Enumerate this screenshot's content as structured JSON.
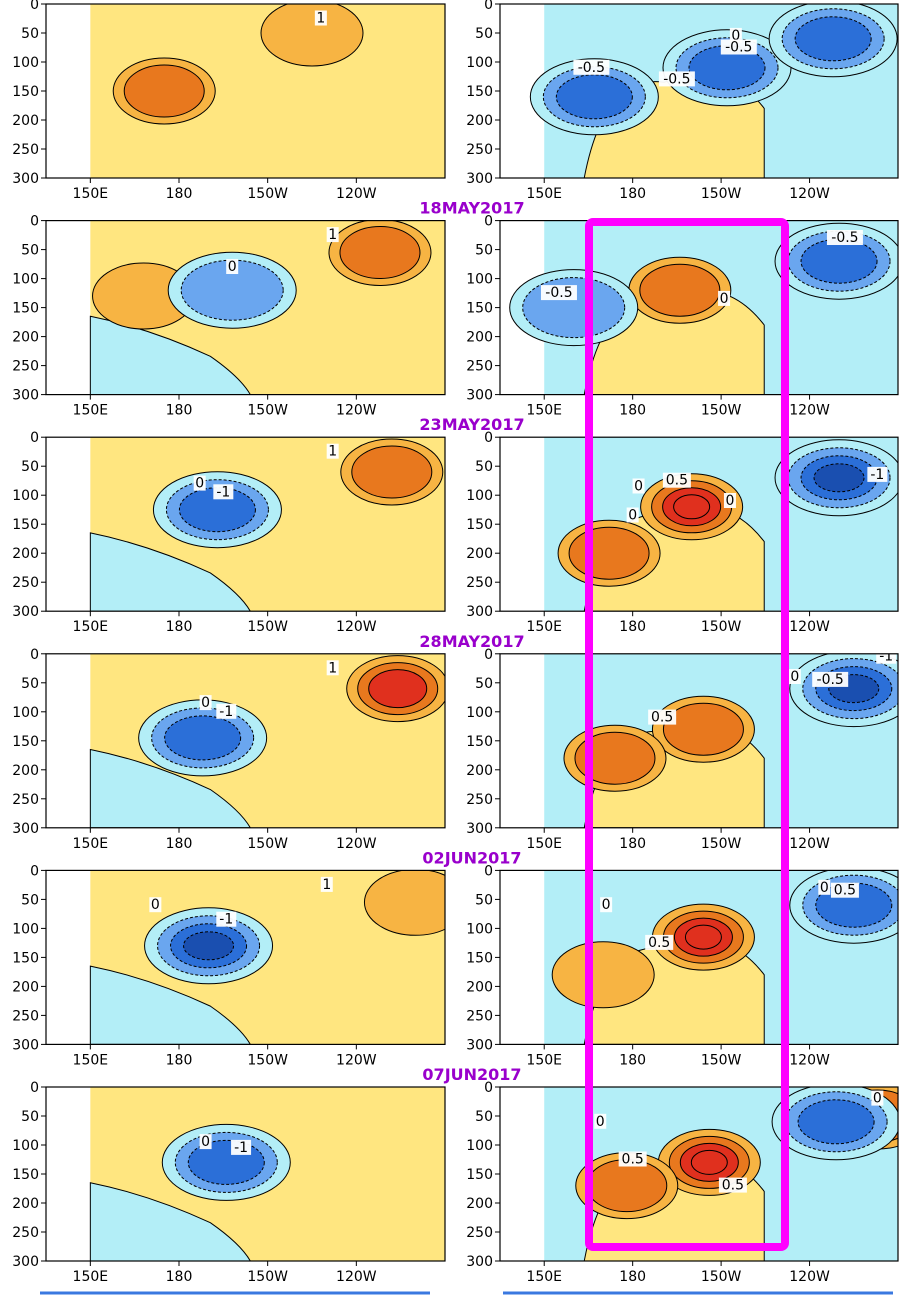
{
  "chart_data": {
    "type": "contour",
    "description": "Paired longitude-depth sections; left = anomaly, right = change",
    "y_axis": {
      "ticks": [
        0,
        50,
        100,
        150,
        200,
        250,
        300
      ],
      "ylim": [
        300,
        0
      ]
    },
    "x_axis": {
      "ticks": [
        {
          "lon": 150,
          "label": "150E"
        },
        {
          "lon": 180,
          "label": "180"
        },
        {
          "lon": 210,
          "label": "150W"
        },
        {
          "lon": 240,
          "label": "120W"
        }
      ],
      "xlim": [
        135,
        270
      ],
      "data_start_lon": 150
    },
    "colors": {
      "light_yellow": "#ffe680",
      "orange": "#f7b443",
      "deep_orange": "#e8781e",
      "red": "#e0301e",
      "light_blue": "#b3eef7",
      "blue": "#6aa6ef",
      "dark_blue": "#2b6fd8",
      "date_color": "#9900cc",
      "highlight": "#ff00ff"
    },
    "date_labels": [
      "18MAY2017",
      "23MAY2017",
      "28MAY2017",
      "02JUN2017",
      "07JUN2017"
    ],
    "rows": [
      {
        "left": {
          "warm": [
            {
              "lon": 175,
              "depth": 150,
              "level": 2
            },
            {
              "lon": 225,
              "depth": 50,
              "level": 1
            }
          ],
          "cold": [],
          "labels": [
            {
              "text": "1",
              "lon": 228,
              "depth": 25
            }
          ]
        },
        "right": {
          "warm": [],
          "cold": [
            {
              "lon": 167,
              "depth": 160,
              "level": 2
            },
            {
              "lon": 212,
              "depth": 110,
              "level": 2
            },
            {
              "lon": 248,
              "depth": 60,
              "level": 2
            }
          ],
          "labels": [
            {
              "text": "-0.5",
              "lon": 166,
              "depth": 110
            },
            {
              "text": "-0.5",
              "lon": 195,
              "depth": 130
            },
            {
              "text": "0",
              "lon": 215,
              "depth": 55
            },
            {
              "text": "-0.5",
              "lon": 216,
              "depth": 75
            }
          ]
        }
      },
      {
        "left": {
          "warm": [
            {
              "lon": 168,
              "depth": 130,
              "level": 1
            },
            {
              "lon": 248,
              "depth": 55,
              "level": 2
            }
          ],
          "cold": [
            {
              "lon": 198,
              "depth": 120,
              "level": 1
            }
          ],
          "labels": [
            {
              "text": "1",
              "lon": 232,
              "depth": 25
            },
            {
              "text": "0",
              "lon": 198,
              "depth": 80
            }
          ]
        },
        "right": {
          "warm": [
            {
              "lon": 196,
              "depth": 120,
              "level": 2
            }
          ],
          "cold": [
            {
              "lon": 160,
              "depth": 150,
              "level": 1
            },
            {
              "lon": 250,
              "depth": 70,
              "level": 2
            }
          ],
          "labels": [
            {
              "text": "-0.5",
              "lon": 155,
              "depth": 125
            },
            {
              "text": "-0.5",
              "lon": 252,
              "depth": 30
            },
            {
              "text": "0",
              "lon": 211,
              "depth": 135
            }
          ]
        }
      },
      {
        "left": {
          "warm": [
            {
              "lon": 252,
              "depth": 60,
              "level": 2
            }
          ],
          "cold": [
            {
              "lon": 193,
              "depth": 125,
              "level": 2
            }
          ],
          "labels": [
            {
              "text": "1",
              "lon": 232,
              "depth": 25
            },
            {
              "text": "0",
              "lon": 187,
              "depth": 80
            },
            {
              "text": "-1",
              "lon": 195,
              "depth": 95
            }
          ]
        },
        "right": {
          "warm": [
            {
              "lon": 200,
              "depth": 120,
              "level": 4
            },
            {
              "lon": 172,
              "depth": 200,
              "level": 2
            }
          ],
          "cold": [
            {
              "lon": 250,
              "depth": 70,
              "level": 3
            }
          ],
          "labels": [
            {
              "text": "0.5",
              "lon": 195,
              "depth": 75
            },
            {
              "text": "0",
              "lon": 182,
              "depth": 85
            },
            {
              "text": "0",
              "lon": 180,
              "depth": 135
            },
            {
              "text": "0",
              "lon": 213,
              "depth": 110
            },
            {
              "text": "-1",
              "lon": 263,
              "depth": 65
            }
          ]
        }
      },
      {
        "left": {
          "warm": [
            {
              "lon": 254,
              "depth": 60,
              "level": 3
            }
          ],
          "cold": [
            {
              "lon": 188,
              "depth": 145,
              "level": 2
            }
          ],
          "labels": [
            {
              "text": "1",
              "lon": 232,
              "depth": 25
            },
            {
              "text": "0",
              "lon": 189,
              "depth": 85
            },
            {
              "text": "-1",
              "lon": 196,
              "depth": 100
            }
          ]
        },
        "right": {
          "warm": [
            {
              "lon": 204,
              "depth": 130,
              "level": 2
            },
            {
              "lon": 174,
              "depth": 180,
              "level": 2
            }
          ],
          "cold": [
            {
              "lon": 255,
              "depth": 60,
              "level": 3
            }
          ],
          "labels": [
            {
              "text": "0.5",
              "lon": 190,
              "depth": 110
            },
            {
              "text": "0",
              "lon": 235,
              "depth": 40
            },
            {
              "text": "-0.5",
              "lon": 247,
              "depth": 45
            },
            {
              "text": "-1",
              "lon": 266,
              "depth": 5
            }
          ]
        }
      },
      {
        "left": {
          "warm": [
            {
              "lon": 260,
              "depth": 55,
              "level": 1
            }
          ],
          "cold": [
            {
              "lon": 190,
              "depth": 130,
              "level": 3
            }
          ],
          "labels": [
            {
              "text": "1",
              "lon": 230,
              "depth": 25
            },
            {
              "text": "0",
              "lon": 172,
              "depth": 60
            },
            {
              "text": "-1",
              "lon": 196,
              "depth": 85
            }
          ]
        },
        "right": {
          "warm": [
            {
              "lon": 204,
              "depth": 115,
              "level": 4
            },
            {
              "lon": 170,
              "depth": 180,
              "level": 1
            }
          ],
          "cold": [
            {
              "lon": 255,
              "depth": 60,
              "level": 2
            }
          ],
          "labels": [
            {
              "text": "0",
              "lon": 171,
              "depth": 60
            },
            {
              "text": "0.5",
              "lon": 189,
              "depth": 125
            },
            {
              "text": "0",
              "lon": 245,
              "depth": 30
            },
            {
              "text": "0.5",
              "lon": 252,
              "depth": 35
            }
          ]
        }
      },
      {
        "left": {
          "warm": [],
          "cold": [
            {
              "lon": 196,
              "depth": 130,
              "level": 2
            }
          ],
          "labels": [
            {
              "text": "0",
              "lon": 189,
              "depth": 95
            },
            {
              "text": "-1",
              "lon": 201,
              "depth": 105
            }
          ]
        },
        "right": {
          "warm": [
            {
              "lon": 206,
              "depth": 130,
              "level": 4
            },
            {
              "lon": 178,
              "depth": 170,
              "level": 2
            },
            {
              "lon": 263,
              "depth": 50,
              "level": 2
            }
          ],
          "cold": [
            {
              "lon": 249,
              "depth": 60,
              "level": 2
            }
          ],
          "labels": [
            {
              "text": "0",
              "lon": 169,
              "depth": 60
            },
            {
              "text": "0.5",
              "lon": 180,
              "depth": 125
            },
            {
              "text": "0.5",
              "lon": 214,
              "depth": 170
            },
            {
              "text": "0",
              "lon": 263,
              "depth": 20
            }
          ]
        }
      }
    ]
  }
}
